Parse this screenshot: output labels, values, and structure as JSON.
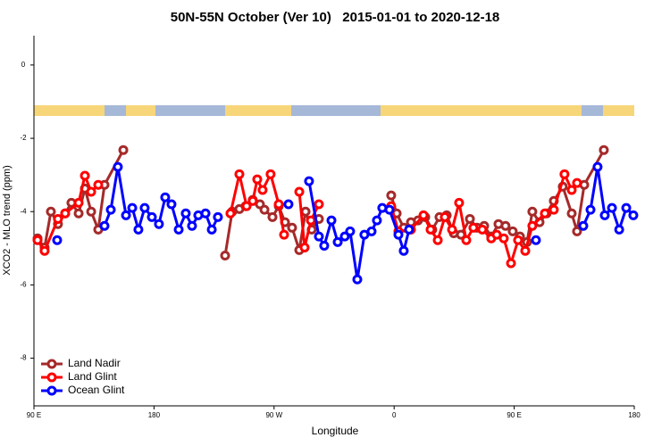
{
  "chart_data": {
    "type": "line",
    "title": "50N-55N October (Ver 10)   2015-01-01 to 2020-12-18",
    "xlabel": "Longitude",
    "ylabel": "XCO2 - MLO trend (ppm)",
    "xlim": [
      90,
      540
    ],
    "ylim": [
      -9.3,
      0.8
    ],
    "xticks": [
      {
        "value": 90,
        "label": "90 E"
      },
      {
        "value": 180,
        "label": "180"
      },
      {
        "value": 270,
        "label": "90 W"
      },
      {
        "value": 360,
        "label": "0"
      },
      {
        "value": 450,
        "label": "90 E"
      },
      {
        "value": 540,
        "label": "180"
      }
    ],
    "yticks": [
      0,
      -2,
      -4,
      -6,
      -8
    ],
    "legend": "lower left",
    "series": [
      {
        "name": "Land Nadir",
        "color": "#a52a2a",
        "x": [
          92.7,
          98,
          102.7,
          108,
          113.4,
          118.1,
          123.5,
          128.2,
          132.9,
          138.2,
          142.9,
          157,
          null,
          233.3,
          238.6,
          244,
          248.7,
          254,
          259.4,
          262.8,
          268.8,
          273.5,
          278.2,
          283.5,
          288.9,
          293.6,
          298.2,
          303.6,
          null,
          357.8,
          361.9,
          367.2,
          372.6,
          377.9,
          383.3,
          388.6,
          394,
          399.4,
          404.7,
          410.1,
          416.8,
          422.1,
          427.5,
          432.8,
          438.2,
          443.5,
          448.9,
          454.3,
          459.6,
          463.6,
          469,
          474.3,
          479.7,
          486.4,
          493.1,
          497.1,
          502.5,
          517.2
        ],
        "values": [
          -4.73,
          -4.98,
          -4.0,
          -4.34,
          -4.05,
          -3.76,
          -4.05,
          -3.37,
          -4.0,
          -4.49,
          -3.27,
          -2.32,
          null,
          -5.2,
          -4.0,
          -3.93,
          -3.85,
          -3.68,
          -3.8,
          -3.95,
          -4.15,
          -3.85,
          -4.29,
          -4.44,
          -5.05,
          -4.0,
          -4.49,
          -4.2,
          null,
          -3.56,
          -4.05,
          -4.44,
          -4.29,
          -4.24,
          -4.15,
          -4.49,
          -4.15,
          -4.1,
          -4.59,
          -4.63,
          -4.2,
          -4.44,
          -4.39,
          -4.68,
          -4.34,
          -4.39,
          -4.54,
          -4.68,
          -4.83,
          -4.0,
          -4.29,
          -4.05,
          -3.71,
          -3.32,
          -4.05,
          -4.54,
          -3.27,
          -2.32
        ]
      },
      {
        "name": "Land Glint",
        "color": "#ff0000",
        "x": [
          92.7,
          98,
          108,
          113.4,
          123.5,
          128.2,
          132.9,
          138.2,
          null,
          237.3,
          244,
          249.4,
          254,
          257.4,
          261.4,
          267.4,
          273.5,
          277.5,
          null,
          288.9,
          292.9,
          297.6,
          303.6,
          null,
          357.8,
          363.2,
          372.6,
          382,
          387.3,
          392.7,
          398,
          403.4,
          408.7,
          414.1,
          419.4,
          426.1,
          432.8,
          436.9,
          442.2,
          447.6,
          452.9,
          458.3,
          463.6,
          473,
          479.7,
          487.7,
          493.1,
          497.1
        ],
        "values": [
          -4.78,
          -5.07,
          -4.2,
          -4.05,
          -3.76,
          -3.02,
          -3.46,
          -3.27,
          null,
          -4.05,
          -2.98,
          -3.85,
          -3.71,
          -3.12,
          -3.41,
          -2.98,
          -3.8,
          -4.63,
          null,
          -3.46,
          -4.98,
          -4.24,
          -3.8,
          null,
          -3.85,
          -4.54,
          -4.49,
          -4.1,
          -4.49,
          -4.78,
          -4.15,
          -4.49,
          -3.76,
          -4.78,
          -4.44,
          -4.49,
          -4.73,
          -4.63,
          -4.73,
          -5.41,
          -4.78,
          -5.07,
          -4.39,
          -4.05,
          -3.95,
          -2.98,
          -3.41,
          -3.22
        ]
      },
      {
        "name": "Ocean Glint",
        "color": "#0000ff",
        "x": [
          107.4,
          null,
          142.9,
          147.6,
          152.9,
          159,
          163.7,
          168.3,
          173,
          178.4,
          183.7,
          188.4,
          193.1,
          198.5,
          203.8,
          208.5,
          213.2,
          218.6,
          223.3,
          227.9,
          null,
          280.8,
          null,
          296.2,
          303.6,
          307.6,
          313,
          317.7,
          323,
          327,
          332.4,
          337.7,
          343.1,
          347.1,
          351.1,
          356.5,
          363.2,
          367.2,
          371.2,
          null,
          466.3,
          null,
          501.8,
          507.2,
          512.5,
          517.9,
          523.3,
          528.7,
          534,
          539.3
        ],
        "values": [
          -4.78,
          null,
          -4.39,
          -3.95,
          -2.78,
          -4.1,
          -3.9,
          -4.49,
          -3.9,
          -4.15,
          -4.34,
          -3.61,
          -3.8,
          -4.49,
          -4.05,
          -4.39,
          -4.1,
          -4.05,
          -4.49,
          -4.15,
          null,
          -3.8,
          null,
          -3.17,
          -4.68,
          -4.93,
          -4.24,
          -4.83,
          -4.68,
          -4.54,
          -5.85,
          -4.63,
          -4.54,
          -4.24,
          -3.9,
          -3.95,
          -4.63,
          -5.07,
          -4.49,
          null,
          -4.78,
          null,
          -4.39,
          -3.95,
          -2.78,
          -4.1,
          -3.9,
          -4.49,
          -3.9,
          -4.1
        ]
      }
    ]
  }
}
